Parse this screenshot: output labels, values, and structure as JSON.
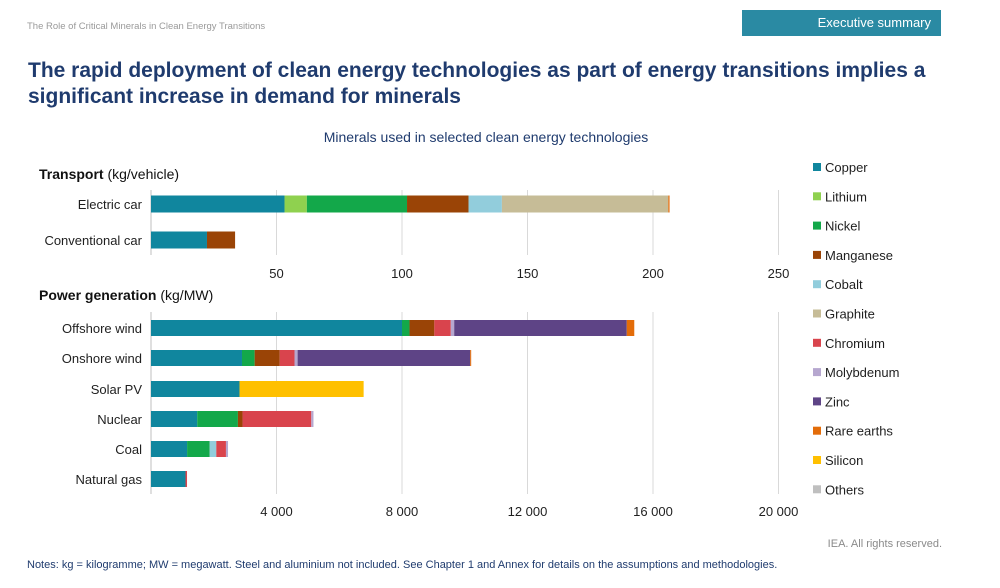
{
  "header": {
    "doc_title": "The Role of Critical Minerals in Clean Energy Transitions",
    "section_tag": "Executive summary",
    "headline": "The rapid deployment of clean energy technologies as part of energy transitions implies a significant increase in demand for minerals"
  },
  "footer": {
    "credit": "IEA. All rights reserved.",
    "notes": "Notes: kg = kilogramme; MW = megawatt. Steel and aluminium not included. See Chapter 1 and Annex for details on the assumptions and methodologies."
  },
  "chart_data": {
    "type": "bar",
    "orientation": "horizontal",
    "stacked": true,
    "title": "Minerals used in selected clean energy technologies",
    "legend_position": "right",
    "legend": [
      {
        "name": "Copper",
        "color": "#10869e"
      },
      {
        "name": "Lithium",
        "color": "#8fd14f"
      },
      {
        "name": "Nickel",
        "color": "#13a84a"
      },
      {
        "name": "Manganese",
        "color": "#9a4406"
      },
      {
        "name": "Cobalt",
        "color": "#92cddc"
      },
      {
        "name": "Graphite",
        "color": "#c6bc97"
      },
      {
        "name": "Chromium",
        "color": "#d9444d"
      },
      {
        "name": "Molybdenum",
        "color": "#b6a7cf"
      },
      {
        "name": "Zinc",
        "color": "#5e4486"
      },
      {
        "name": "Rare earths",
        "color": "#e36c09"
      },
      {
        "name": "Silicon",
        "color": "#ffc000"
      },
      {
        "name": "Others",
        "color": "#bfbfbf"
      }
    ],
    "panels": [
      {
        "title_bold": "Transport",
        "title_unit": " (kg/vehicle)",
        "xlim": [
          0,
          250
        ],
        "ticks": [
          50,
          100,
          150,
          200,
          250
        ],
        "tick_labels": [
          "50",
          "100",
          "150",
          "200",
          "250"
        ],
        "grid": true,
        "categories": [
          "Electric car",
          "Conventional car"
        ],
        "values": [
          {
            "Copper": 53.2,
            "Lithium": 8.9,
            "Nickel": 39.9,
            "Manganese": 24.5,
            "Cobalt": 13.3,
            "Graphite": 66.3,
            "Rare earths": 0.5
          },
          {
            "Copper": 22.3,
            "Manganese": 11.2
          }
        ]
      },
      {
        "title_bold": "Power generation",
        "title_unit": " (kg/MW)",
        "xlim": [
          0,
          20000
        ],
        "ticks": [
          4000,
          8000,
          12000,
          16000,
          20000
        ],
        "tick_labels": [
          "4 000",
          "8 000",
          "12 000",
          "16 000",
          "20 000"
        ],
        "grid": true,
        "categories": [
          "Offshore wind",
          "Onshore wind",
          "Solar PV",
          "Nuclear",
          "Coal",
          "Natural gas"
        ],
        "values": [
          {
            "Copper": 8000,
            "Nickel": 240,
            "Manganese": 790,
            "Chromium": 525,
            "Molybdenum": 109,
            "Zinc": 5500,
            "Rare earths": 239
          },
          {
            "Copper": 2900,
            "Nickel": 404,
            "Manganese": 800,
            "Chromium": 470,
            "Molybdenum": 99,
            "Zinc": 5500,
            "Rare earths": 14
          },
          {
            "Copper": 2822,
            "Silicon": 3955
          },
          {
            "Copper": 1473,
            "Nickel": 1297,
            "Manganese": 148,
            "Chromium": 2190,
            "Molybdenum": 70
          },
          {
            "Copper": 1150,
            "Nickel": 721,
            "Cobalt": 210,
            "Chromium": 308,
            "Molybdenum": 66
          },
          {
            "Copper": 1100,
            "Chromium": 48
          }
        ]
      }
    ]
  }
}
